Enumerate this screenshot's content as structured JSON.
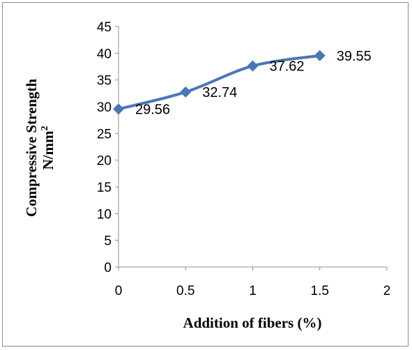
{
  "chart_data": {
    "type": "line",
    "xlabel": "Addition of fibers (%)",
    "ylabel_line1": "Compressive Strength",
    "ylabel_line2_base": "N/mm",
    "ylabel_line2_sup": "2",
    "x": [
      0,
      0.5,
      1,
      1.5
    ],
    "y": [
      29.56,
      32.74,
      37.62,
      39.55
    ],
    "data_labels": [
      "29.56",
      "32.74",
      "37.62",
      "39.55"
    ],
    "xlim": [
      0,
      2
    ],
    "ylim": [
      0,
      45
    ],
    "x_ticks": [
      "0",
      "0.5",
      "1",
      "1.5",
      "2"
    ],
    "y_ticks": [
      "0",
      "5",
      "10",
      "15",
      "20",
      "25",
      "30",
      "35",
      "40",
      "45"
    ],
    "series_color": "#4a76b8",
    "marker": "diamond",
    "grid": false,
    "legend": "none"
  }
}
